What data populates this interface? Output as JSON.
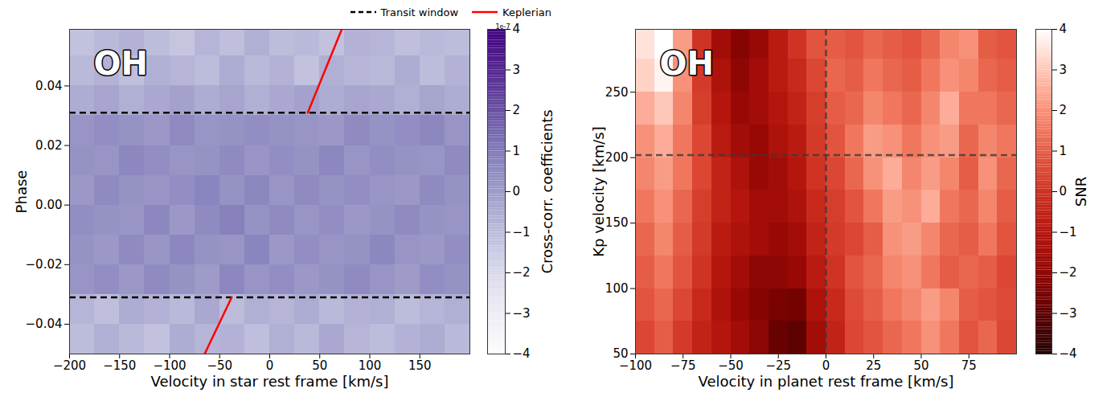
{
  "chart_data": [
    {
      "type": "heatmap",
      "annotation": "OH",
      "xlabel": "Velocity in star rest frame [km/s]",
      "ylabel": "Phase",
      "xlim": [
        -200,
        200
      ],
      "ylim": [
        -0.05,
        0.059
      ],
      "xticks": [
        -200,
        -150,
        -100,
        -50,
        0,
        50,
        100,
        150
      ],
      "yticks": [
        -0.04,
        -0.02,
        {
          "value": 0,
          "label": "0.00"
        },
        0.02,
        0.04
      ],
      "x_bins": [
        -200,
        -175,
        -150,
        -125,
        -100,
        -75,
        -50,
        -25,
        0,
        25,
        50,
        75,
        100,
        125,
        150,
        175,
        200
      ],
      "y_bins": [
        -0.05,
        -0.04,
        -0.03,
        -0.02,
        -0.01,
        0,
        0.01,
        0.02,
        0.03,
        0.04,
        0.05,
        0.06
      ],
      "z": [
        [
          -1.0,
          -0.6,
          -0.9,
          -1.2,
          -0.5,
          -0.8,
          -0.7,
          -1.1,
          -0.6,
          -0.9,
          -0.4,
          -0.8,
          -1.0,
          -0.7,
          -0.5,
          -0.9
        ],
        [
          -0.8,
          -1.1,
          -0.5,
          -0.7,
          -0.9,
          -0.4,
          -1.0,
          -0.6,
          -0.8,
          -0.5,
          -0.9,
          -0.7,
          -0.6,
          -1.0,
          -0.8,
          -0.6
        ],
        [
          0.2,
          0.4,
          0.1,
          0.5,
          0.3,
          0.0,
          0.6,
          0.2,
          0.4,
          0.1,
          0.3,
          0.5,
          0.2,
          0.0,
          0.4,
          0.3
        ],
        [
          0.3,
          0.1,
          0.5,
          0.2,
          0.6,
          0.3,
          0.2,
          0.7,
          0.1,
          0.4,
          0.2,
          0.3,
          0.6,
          0.2,
          0.1,
          0.4
        ],
        [
          0.4,
          0.3,
          0.2,
          0.6,
          0.1,
          0.5,
          0.8,
          0.3,
          0.5,
          0.2,
          0.4,
          0.1,
          0.3,
          0.5,
          0.3,
          0.2
        ],
        [
          0.1,
          0.5,
          0.3,
          0.2,
          0.4,
          0.7,
          0.3,
          0.6,
          0.2,
          0.5,
          0.3,
          0.4,
          0.2,
          0.1,
          0.5,
          0.3
        ],
        [
          0.3,
          0.2,
          0.6,
          0.4,
          0.2,
          0.3,
          0.5,
          0.2,
          0.4,
          0.3,
          0.6,
          0.2,
          0.4,
          0.3,
          0.2,
          0.5
        ],
        [
          0.2,
          0.4,
          0.3,
          0.1,
          0.5,
          0.2,
          0.3,
          0.4,
          0.3,
          0.2,
          0.1,
          0.5,
          0.3,
          0.4,
          0.6,
          0.2
        ],
        [
          -0.5,
          -0.3,
          -0.6,
          -0.4,
          -0.2,
          -0.5,
          -0.3,
          -0.6,
          -0.4,
          -0.2,
          -0.5,
          -0.3,
          -0.4,
          -0.6,
          -0.3,
          -0.5
        ],
        [
          -0.9,
          -0.7,
          -1.1,
          -0.6,
          -0.8,
          -1.0,
          -0.5,
          -0.9,
          -0.7,
          -1.2,
          -0.6,
          -0.8,
          -0.9,
          -0.5,
          -1.0,
          -0.7
        ],
        [
          -1.2,
          -0.9,
          -0.7,
          -1.0,
          -1.3,
          -0.8,
          -1.1,
          -0.6,
          -1.0,
          -0.9,
          -1.2,
          -0.7,
          -0.8,
          -1.1,
          -0.9,
          -1.0
        ]
      ],
      "colorbar": {
        "label": "Cross-corr. coefficients",
        "lim": [
          -4,
          4
        ],
        "ticks": [
          -4,
          -3,
          -2,
          -1,
          0,
          1,
          2,
          3,
          4
        ],
        "scale_text": "1e-7"
      },
      "legend": "top",
      "series": [
        {
          "name": "Transit window",
          "color": "black",
          "line_style": "dashed",
          "values": [
            -0.031,
            0.031
          ]
        },
        {
          "name": "Keplerian",
          "color": "red",
          "line_style": "solid",
          "segments": [
            {
              "x": [
                -65,
                -38
              ],
              "y": [
                -0.05,
                -0.031
              ]
            },
            {
              "x": [
                38,
                72
              ],
              "y": [
                0.031,
                0.059
              ]
            }
          ]
        }
      ]
    },
    {
      "type": "heatmap",
      "annotation": "OH",
      "xlabel": "Velocity in planet rest frame [km/s]",
      "ylabel": "Kp velocity [km/s]",
      "xlim": [
        -100,
        100
      ],
      "ylim": [
        50,
        298
      ],
      "xticks": [
        -100,
        -75,
        -50,
        -25,
        0,
        25,
        50,
        75
      ],
      "yticks": [
        50,
        100,
        150,
        200,
        250
      ],
      "x_bins": [
        -100,
        -90,
        -80,
        -70,
        -60,
        -50,
        -40,
        -30,
        -20,
        -10,
        0,
        10,
        20,
        30,
        40,
        50,
        60,
        70,
        80,
        90,
        100
      ],
      "y_bins": [
        50,
        75,
        100,
        125,
        150,
        175,
        200,
        225,
        250,
        275,
        300
      ],
      "z": [
        [
          0.5,
          1.0,
          0.2,
          -0.5,
          -1.0,
          -1.5,
          -2.0,
          -2.8,
          -3.0,
          -1.5,
          -0.5,
          0.5,
          0.8,
          1.2,
          1.5,
          2.0,
          1.5,
          0.8,
          1.2,
          0.5
        ],
        [
          0.8,
          1.2,
          0.5,
          -0.3,
          -1.2,
          -1.8,
          -2.2,
          -2.5,
          -2.6,
          -1.2,
          -0.3,
          0.6,
          1.0,
          1.5,
          1.8,
          2.2,
          1.8,
          1.0,
          0.8,
          0.6
        ],
        [
          1.0,
          1.5,
          0.8,
          0.0,
          -1.0,
          -1.5,
          -2.0,
          -2.0,
          -1.8,
          -0.8,
          0.0,
          0.8,
          1.2,
          1.8,
          2.0,
          1.5,
          1.0,
          1.2,
          1.0,
          0.5
        ],
        [
          1.2,
          1.8,
          1.0,
          0.2,
          -0.8,
          -1.2,
          -1.5,
          -1.8,
          -1.5,
          -0.5,
          0.2,
          0.5,
          1.0,
          2.0,
          2.2,
          1.8,
          1.2,
          1.0,
          1.5,
          0.8
        ],
        [
          1.5,
          2.0,
          1.2,
          0.3,
          -0.5,
          -1.0,
          -1.5,
          -1.5,
          -1.2,
          -0.3,
          0.3,
          0.8,
          1.5,
          2.2,
          2.0,
          2.5,
          1.5,
          1.2,
          1.8,
          1.0
        ],
        [
          1.8,
          2.2,
          1.5,
          0.5,
          -0.5,
          -1.2,
          -1.8,
          -1.5,
          -1.0,
          0.0,
          0.5,
          1.2,
          2.0,
          2.5,
          1.8,
          2.2,
          1.8,
          1.0,
          2.0,
          1.2
        ],
        [
          2.0,
          2.5,
          1.5,
          0.5,
          -0.8,
          -1.5,
          -1.8,
          -1.2,
          -0.8,
          0.2,
          0.8,
          1.5,
          2.2,
          2.0,
          1.5,
          2.0,
          2.2,
          1.2,
          1.8,
          1.5
        ],
        [
          2.5,
          3.0,
          1.8,
          0.3,
          -1.0,
          -1.8,
          -1.5,
          -1.0,
          -0.5,
          0.3,
          1.0,
          1.2,
          1.8,
          1.5,
          1.2,
          1.8,
          2.5,
          1.5,
          1.5,
          1.2
        ],
        [
          3.2,
          3.8,
          2.0,
          0.2,
          -1.2,
          -2.0,
          -1.5,
          -0.8,
          -0.3,
          0.5,
          1.2,
          1.0,
          1.5,
          1.2,
          1.0,
          1.5,
          2.0,
          1.8,
          1.2,
          1.0
        ],
        [
          3.5,
          4.0,
          2.2,
          0.0,
          -1.5,
          -2.2,
          -1.8,
          -0.8,
          0.0,
          0.8,
          1.0,
          0.8,
          1.2,
          1.0,
          0.8,
          1.2,
          1.8,
          2.0,
          1.0,
          0.8
        ]
      ],
      "colorbar": {
        "label": "SNR",
        "lim": [
          -4,
          4
        ],
        "ticks": [
          -4,
          -3,
          -2,
          -1,
          0,
          1,
          2,
          3,
          4
        ]
      },
      "reference_lines": {
        "kp": 202,
        "velocity": 0
      }
    }
  ]
}
